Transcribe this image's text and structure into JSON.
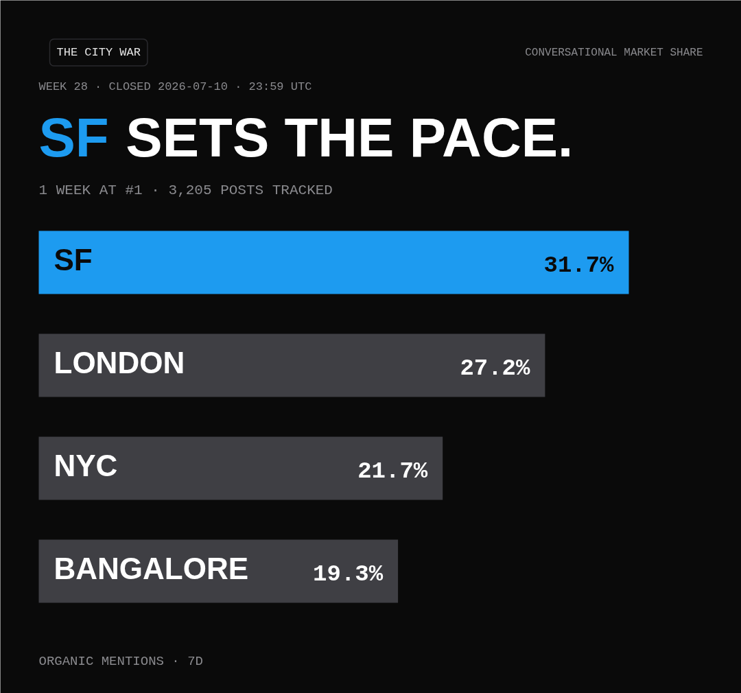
{
  "chart_data": {
    "type": "bar",
    "orientation": "horizontal",
    "title": "SF SETS THE PACE.",
    "subtitle": "1 WEEK AT #1 · 3,205 POSTS TRACKED",
    "annotations": [
      "THE CITY WAR",
      "CONVERSATIONAL MARKET SHARE",
      "WEEK 28 · CLOSED 2026-07-10 · 23:59 UTC",
      "ORGANIC MENTIONS · 7D"
    ],
    "categories": [
      "SF",
      "LONDON",
      "NYC",
      "BANGALORE"
    ],
    "values": [
      31.7,
      27.2,
      21.7,
      19.3
    ],
    "colors": [
      "#1d9bf0",
      "#3f3f44",
      "#3f3f44",
      "#3f3f44"
    ],
    "value_labels": [
      "31.7%",
      "27.2%",
      "21.7%",
      "19.3%"
    ]
  }
}
